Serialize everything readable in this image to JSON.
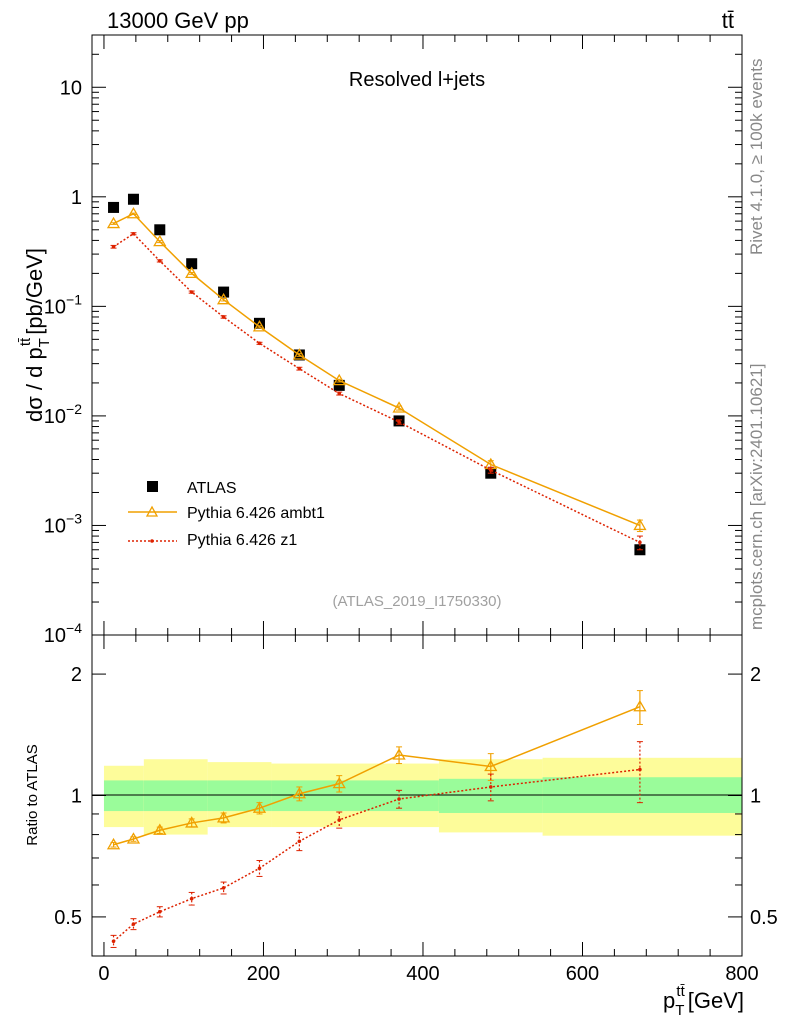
{
  "header": {
    "energy_label": "13000 GeV pp",
    "process_label": "tt̄",
    "rivet_label": "Rivet 4.1.0, ≥ 100k events",
    "mcplots_label": "mcplots.cern.ch [arXiv:2401.10621]"
  },
  "chart_data": [
    {
      "type": "line",
      "panel": "main",
      "title": "Resolved l+jets",
      "analysis_id": "(ATLAS_2019_I1750330)",
      "ylabel_main": "dσ / d p",
      "ylabel_sub": "T",
      "ylabel_sup": "tt̄",
      "ylabel_units": "[pb/GeV]",
      "yscale": "log",
      "ylim": [
        0.0001,
        30
      ],
      "xlim": [
        -15,
        800
      ],
      "yticks": [
        {
          "v": 10,
          "base": "10",
          "exp": ""
        },
        {
          "v": 1,
          "base": "1",
          "exp": ""
        },
        {
          "v": 0.1,
          "base": "10",
          "exp": "−1"
        },
        {
          "v": 0.01,
          "base": "10",
          "exp": "−2"
        },
        {
          "v": 0.001,
          "base": "10",
          "exp": "−3"
        },
        {
          "v": 0.0001,
          "base": "10",
          "exp": "−4"
        }
      ],
      "x": [
        12,
        37,
        70,
        110,
        150,
        195,
        245,
        295,
        370,
        485,
        672
      ],
      "series": [
        {
          "name": "ATLAS",
          "marker": "square",
          "color": "#000000",
          "values": [
            0.8,
            0.95,
            0.5,
            0.245,
            0.135,
            0.07,
            0.036,
            0.019,
            0.009,
            0.003,
            0.0006
          ],
          "err": [
            0.03,
            0.03,
            0.02,
            0.01,
            0.005,
            0.003,
            0.0015,
            0.001,
            0.0005,
            0.0002,
            5e-05
          ]
        },
        {
          "name": "Pythia 6.426 ambt1",
          "marker": "triangle",
          "color": "#f0a000",
          "values": [
            0.57,
            0.7,
            0.39,
            0.2,
            0.115,
            0.065,
            0.036,
            0.021,
            0.0118,
            0.0036,
            0.001
          ],
          "err": [
            0.01,
            0.01,
            0.008,
            0.004,
            0.003,
            0.0015,
            0.001,
            0.0006,
            0.0005,
            0.0003,
            0.00012
          ]
        },
        {
          "name": "Pythia 6.426 z1",
          "marker": "dot",
          "color": "#dd2200",
          "values": [
            0.35,
            0.46,
            0.26,
            0.135,
            0.08,
            0.046,
            0.027,
            0.016,
            0.0088,
            0.0032,
            0.0007
          ],
          "err": [
            0.01,
            0.01,
            0.006,
            0.003,
            0.002,
            0.001,
            0.0008,
            0.0005,
            0.0004,
            0.0002,
            0.0001
          ]
        }
      ],
      "legend": [
        "ATLAS",
        "Pythia 6.426 ambt1",
        "Pythia 6.426 z1"
      ]
    },
    {
      "type": "line",
      "panel": "ratio",
      "ylabel": "Ratio to ATLAS",
      "xlabel_main": "p",
      "xlabel_sub": "T",
      "xlabel_sup": "tt̄",
      "xlabel_units": "[GeV]",
      "yscale": "log",
      "ylim": [
        0.4,
        2.5
      ],
      "xlim": [
        -15,
        800
      ],
      "xticks": [
        0,
        200,
        400,
        600,
        800
      ],
      "yticks": [
        0.5,
        1,
        2
      ],
      "ytick_labels": [
        "0.5",
        "1",
        "2"
      ],
      "bands": [
        {
          "x0": 0,
          "x1": 50,
          "green_lo": 0.915,
          "green_hi": 1.09,
          "yellow_lo": 0.835,
          "yellow_hi": 1.185
        },
        {
          "x0": 50,
          "x1": 130,
          "green_lo": 0.915,
          "green_hi": 1.09,
          "yellow_lo": 0.8,
          "yellow_hi": 1.23
        },
        {
          "x0": 130,
          "x1": 210,
          "green_lo": 0.915,
          "green_hi": 1.09,
          "yellow_lo": 0.835,
          "yellow_hi": 1.21
        },
        {
          "x0": 210,
          "x1": 420,
          "green_lo": 0.915,
          "green_hi": 1.09,
          "yellow_lo": 0.835,
          "yellow_hi": 1.2
        },
        {
          "x0": 420,
          "x1": 550,
          "green_lo": 0.905,
          "green_hi": 1.1,
          "yellow_lo": 0.81,
          "yellow_hi": 1.23
        },
        {
          "x0": 550,
          "x1": 800,
          "green_lo": 0.905,
          "green_hi": 1.11,
          "yellow_lo": 0.795,
          "yellow_hi": 1.24
        }
      ],
      "x": [
        12,
        37,
        70,
        110,
        150,
        195,
        245,
        295,
        370,
        485,
        672
      ],
      "series": [
        {
          "name": "Pythia 6.426 ambt1",
          "marker": "triangle",
          "color": "#f0a000",
          "values": [
            0.755,
            0.78,
            0.82,
            0.855,
            0.88,
            0.93,
            1.01,
            1.07,
            1.26,
            1.18,
            1.66
          ],
          "err": [
            0.01,
            0.01,
            0.015,
            0.02,
            0.025,
            0.03,
            0.04,
            0.05,
            0.06,
            0.09,
            0.16
          ]
        },
        {
          "name": "Pythia 6.426 z1",
          "marker": "dot",
          "color": "#dd2200",
          "values": [
            0.435,
            0.48,
            0.515,
            0.555,
            0.59,
            0.66,
            0.77,
            0.87,
            0.98,
            1.05,
            1.16
          ],
          "err": [
            0.015,
            0.015,
            0.015,
            0.02,
            0.02,
            0.03,
            0.04,
            0.04,
            0.05,
            0.08,
            0.2
          ]
        }
      ]
    }
  ]
}
